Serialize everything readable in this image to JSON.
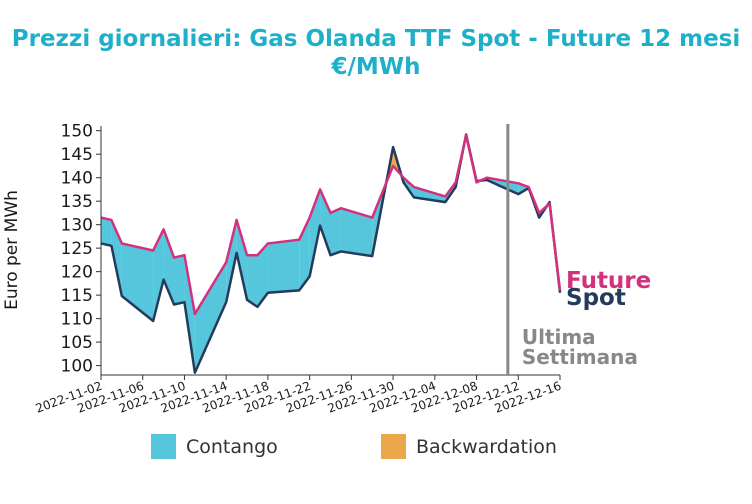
{
  "colors": {
    "title": "#1fb0c9",
    "future": "#d3317e",
    "spot": "#253b5b",
    "contango": "#56c6dd",
    "backwardation": "#eaa84a",
    "marker": "#888888"
  },
  "chart_data": {
    "type": "area",
    "title": "Prezzi giornalieri: Gas Olanda TTF Spot - Future 12 mesi",
    "subtitle": "€/MWh",
    "ylabel": "Euro per MWh",
    "ylim": [
      98,
      151
    ],
    "yticks": [
      100,
      105,
      110,
      115,
      120,
      125,
      130,
      135,
      140,
      145,
      150
    ],
    "xlim": [
      "2022-11-02",
      "2022-12-16"
    ],
    "xticks": [
      "2022-11-02",
      "2022-11-06",
      "2022-11-10",
      "2022-11-14",
      "2022-11-18",
      "2022-11-22",
      "2022-11-26",
      "2022-11-30",
      "2022-12-04",
      "2022-12-08",
      "2022-12-12",
      "2022-12-16"
    ],
    "vline": {
      "x": "2022-12-11",
      "label_line1": "Ultima",
      "label_line2": "Settimana"
    },
    "legend": [
      {
        "label": "Contango",
        "color": "#56c6dd"
      },
      {
        "label": "Backwardation",
        "color": "#eaa84a"
      }
    ],
    "series": [
      {
        "name": "Future",
        "label": "Future",
        "color": "#d3317e",
        "points": [
          [
            "2022-11-02",
            131.5
          ],
          [
            "2022-11-03",
            131.0
          ],
          [
            "2022-11-04",
            126.0
          ],
          [
            "2022-11-07",
            124.5
          ],
          [
            "2022-11-08",
            129.0
          ],
          [
            "2022-11-09",
            123.0
          ],
          [
            "2022-11-10",
            123.5
          ],
          [
            "2022-11-11",
            111.0
          ],
          [
            "2022-11-14",
            122.0
          ],
          [
            "2022-11-15",
            131.0
          ],
          [
            "2022-11-16",
            123.5
          ],
          [
            "2022-11-17",
            123.5
          ],
          [
            "2022-11-18",
            126.0
          ],
          [
            "2022-11-21",
            126.8
          ],
          [
            "2022-11-22",
            131.5
          ],
          [
            "2022-11-23",
            137.5
          ],
          [
            "2022-11-24",
            132.5
          ],
          [
            "2022-11-25",
            133.5
          ],
          [
            "2022-11-28",
            131.5
          ],
          [
            "2022-11-29",
            137.0
          ],
          [
            "2022-11-30",
            142.5
          ],
          [
            "2022-12-01",
            140.0
          ],
          [
            "2022-12-02",
            138.0
          ],
          [
            "2022-12-05",
            136.0
          ],
          [
            "2022-12-06",
            139.0
          ],
          [
            "2022-12-07",
            149.0
          ],
          [
            "2022-12-08",
            139.0
          ],
          [
            "2022-12-09",
            140.0
          ],
          [
            "2022-12-12",
            138.8
          ],
          [
            "2022-12-13",
            138.0
          ],
          [
            "2022-12-14",
            132.5
          ],
          [
            "2022-12-15",
            134.5
          ],
          [
            "2022-12-16",
            116.0
          ]
        ]
      },
      {
        "name": "Spot",
        "label": "Spot",
        "color": "#253b5b",
        "points": [
          [
            "2022-11-02",
            126.0
          ],
          [
            "2022-11-03",
            125.5
          ],
          [
            "2022-11-04",
            114.8
          ],
          [
            "2022-11-07",
            109.5
          ],
          [
            "2022-11-08",
            118.3
          ],
          [
            "2022-11-09",
            113.0
          ],
          [
            "2022-11-10",
            113.5
          ],
          [
            "2022-11-11",
            98.5
          ],
          [
            "2022-11-14",
            113.5
          ],
          [
            "2022-11-15",
            124.0
          ],
          [
            "2022-11-16",
            114.0
          ],
          [
            "2022-11-17",
            112.5
          ],
          [
            "2022-11-18",
            115.5
          ],
          [
            "2022-11-21",
            116.0
          ],
          [
            "2022-11-22",
            119.0
          ],
          [
            "2022-11-23",
            129.8
          ],
          [
            "2022-11-24",
            123.5
          ],
          [
            "2022-11-25",
            124.3
          ],
          [
            "2022-11-28",
            123.3
          ],
          [
            "2022-11-29",
            135.0
          ],
          [
            "2022-11-30",
            146.5
          ],
          [
            "2022-12-01",
            139.0
          ],
          [
            "2022-12-02",
            135.8
          ],
          [
            "2022-12-05",
            134.8
          ],
          [
            "2022-12-06",
            138.0
          ],
          [
            "2022-12-07",
            149.2
          ],
          [
            "2022-12-08",
            139.3
          ],
          [
            "2022-12-09",
            139.5
          ],
          [
            "2022-12-12",
            136.5
          ],
          [
            "2022-12-13",
            137.8
          ],
          [
            "2022-12-14",
            131.5
          ],
          [
            "2022-12-15",
            134.8
          ],
          [
            "2022-12-16",
            115.5
          ]
        ]
      }
    ]
  }
}
